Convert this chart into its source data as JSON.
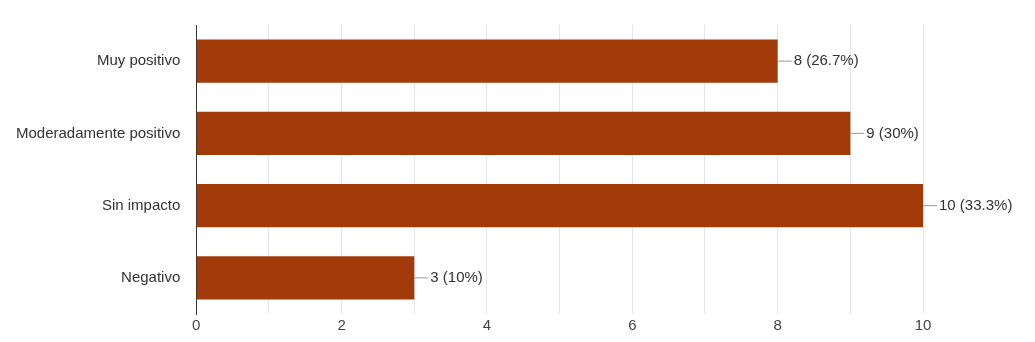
{
  "chart_data": {
    "type": "bar",
    "orientation": "horizontal",
    "categories": [
      "Muy positivo",
      "Moderadamente positivo",
      "Sin impacto",
      "Negativo"
    ],
    "values": [
      8,
      9,
      10,
      3
    ],
    "color": "#a33a0a",
    "value_labels": [
      "8 (26.7%)",
      "9 (30%)",
      "10 (33.3%)",
      "3 (10%)"
    ],
    "xlim": [
      0,
      10
    ],
    "xticks": [
      0,
      {
        "value": 1,
        "label": null
      },
      2,
      {
        "value": 3,
        "label": null
      },
      4,
      {
        "value": 5,
        "label": null
      },
      6,
      {
        "value": 7,
        "label": null
      },
      8,
      {
        "value": 9,
        "label": null
      },
      10
    ],
    "grid": "x",
    "legend": false
  }
}
